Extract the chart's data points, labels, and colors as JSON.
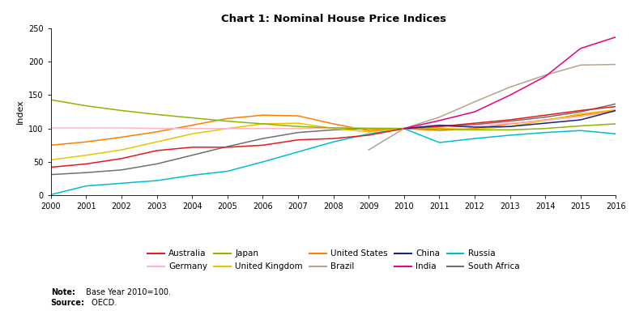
{
  "title": "Chart 1: Nominal House Price Indices",
  "ylabel": "Index",
  "note_bold": "Note:",
  "note_rest": " Base Year 2010=100.",
  "source_bold": "Source:",
  "source_rest": " OECD.",
  "years": [
    2000,
    2001,
    2002,
    2003,
    2004,
    2005,
    2006,
    2007,
    2008,
    2009,
    2010,
    2011,
    2012,
    2013,
    2014,
    2015,
    2016
  ],
  "series": {
    "Australia": [
      42,
      47,
      55,
      67,
      72,
      72,
      75,
      83,
      85,
      90,
      100,
      103,
      108,
      113,
      120,
      127,
      133
    ],
    "Germany": [
      101,
      101,
      101,
      100,
      100,
      100,
      100,
      100,
      101,
      101,
      100,
      102,
      104,
      108,
      112,
      118,
      126
    ],
    "Japan": [
      143,
      134,
      127,
      121,
      116,
      111,
      107,
      103,
      101,
      100,
      100,
      99,
      98,
      98,
      100,
      104,
      107
    ],
    "United Kingdom": [
      53,
      60,
      68,
      80,
      92,
      100,
      107,
      108,
      100,
      95,
      100,
      100,
      99,
      103,
      112,
      122,
      128
    ],
    "United States": [
      75,
      80,
      87,
      95,
      105,
      115,
      120,
      119,
      107,
      97,
      100,
      97,
      100,
      107,
      113,
      120,
      127
    ],
    "Brazil": [
      null,
      null,
      null,
      null,
      null,
      null,
      null,
      null,
      null,
      68,
      100,
      117,
      140,
      162,
      180,
      195,
      196
    ],
    "China": [
      null,
      null,
      null,
      null,
      null,
      null,
      null,
      null,
      null,
      null,
      100,
      105,
      102,
      103,
      108,
      113,
      127
    ],
    "India": [
      null,
      null,
      null,
      null,
      null,
      null,
      null,
      null,
      null,
      null,
      100,
      112,
      125,
      150,
      178,
      220,
      237
    ],
    "Russia": [
      1,
      14,
      18,
      22,
      30,
      36,
      50,
      65,
      80,
      92,
      100,
      79,
      85,
      90,
      94,
      97,
      92
    ],
    "South Africa": [
      31,
      34,
      38,
      47,
      60,
      73,
      85,
      94,
      98,
      100,
      100,
      103,
      106,
      111,
      117,
      125,
      137
    ]
  },
  "colors": {
    "Australia": "#e41a1c",
    "Germany": "#ffb6c1",
    "Japan": "#8db600",
    "United Kingdom": "#e8c400",
    "United States": "#ff7f00",
    "Brazil": "#b5a48a",
    "China": "#1a237e",
    "India": "#e7007e",
    "Russia": "#00bcd4",
    "South Africa": "#707070"
  },
  "ylim": [
    0,
    250
  ],
  "yticks": [
    0,
    50,
    100,
    150,
    200,
    250
  ],
  "xlim": [
    2000,
    2016
  ],
  "legend_row1": [
    "Australia",
    "Germany",
    "Japan",
    "United Kingdom",
    "United States"
  ],
  "legend_row2": [
    "Brazil",
    "China",
    "India",
    "Russia",
    "South Africa"
  ]
}
